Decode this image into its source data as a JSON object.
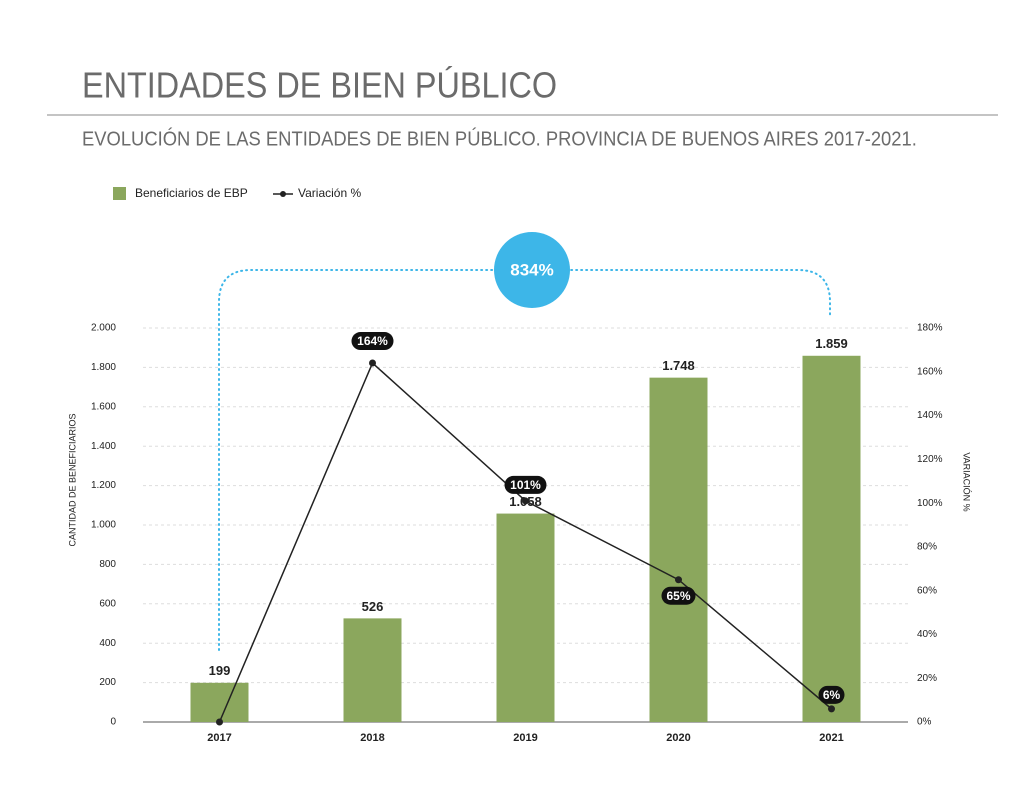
{
  "chart_data": {
    "type": "bar",
    "title": "ENTIDADES DE BIEN PÚBLICO",
    "subtitle": "EVOLUCIÓN DE LAS ENTIDADES DE BIEN PÚBLICO. PROVINCIA DE BUENOS AIRES 2017-2021.",
    "categories": [
      "2017",
      "2018",
      "2019",
      "2020",
      "2021"
    ],
    "series": [
      {
        "name": "Beneficiarios de EBP",
        "type": "bar",
        "color": "#8ba75d",
        "values": [
          199,
          526,
          1058,
          1748,
          1859
        ],
        "value_labels": [
          "199",
          "526",
          "1.058",
          "1.748",
          "1.859"
        ]
      },
      {
        "name": "Variación %",
        "type": "line",
        "axis": "y2",
        "color": "#222222",
        "values": [
          0,
          164,
          101,
          65,
          6
        ],
        "value_labels": [
          null,
          "164%",
          "101%",
          "65%",
          "6%"
        ]
      }
    ],
    "ylabel": "CANTIDAD DE BENEFICIARIOS",
    "y2label": "VARIACIÓN %",
    "ylim": [
      0,
      2000
    ],
    "yticks": [
      0,
      200,
      400,
      600,
      800,
      {
        "value": 1000,
        "label": "1.000"
      },
      {
        "value": 1200,
        "label": "1.200"
      },
      {
        "value": 1400,
        "label": "1.400"
      },
      {
        "value": 1600,
        "label": "1.600"
      },
      {
        "value": 1800,
        "label": "1.800"
      },
      {
        "value": 2000,
        "label": "2.000"
      }
    ],
    "y2lim": [
      0,
      180
    ],
    "y2ticks": [
      {
        "value": 0,
        "label": "0%"
      },
      {
        "value": 20,
        "label": "20%"
      },
      {
        "value": 40,
        "label": "40%"
      },
      {
        "value": 60,
        "label": "60%"
      },
      {
        "value": 80,
        "label": "80%"
      },
      {
        "value": 100,
        "label": "100%"
      },
      {
        "value": 120,
        "label": "120%"
      },
      {
        "value": 140,
        "label": "140%"
      },
      {
        "value": 160,
        "label": "160%"
      },
      {
        "value": 180,
        "label": "180%"
      }
    ],
    "annotation": "834%",
    "grid": true,
    "legend": "top-left"
  }
}
